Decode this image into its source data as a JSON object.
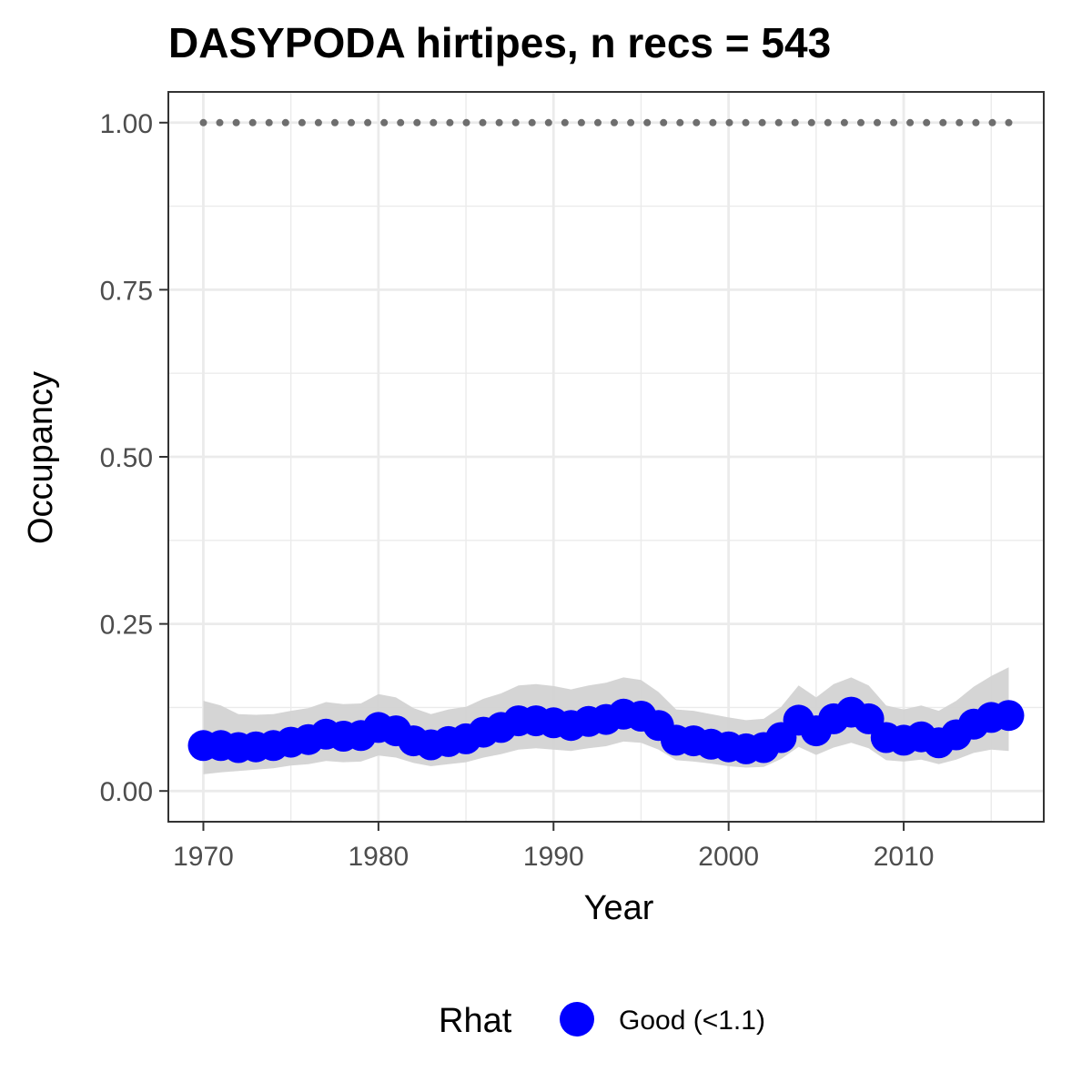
{
  "chart_data": {
    "type": "line",
    "title": "DASYPODA hirtipes, n recs = 543",
    "xlabel": "Year",
    "ylabel": "Occupancy",
    "xlim": [
      1968,
      2018
    ],
    "ylim": [
      -0.046,
      1.046
    ],
    "x_ticks": [
      1970,
      1980,
      1990,
      2000,
      2010
    ],
    "x_tick_labels": [
      "1970",
      "1980",
      "1990",
      "2000",
      "2010"
    ],
    "y_ticks": [
      0,
      0.25,
      0.5,
      0.75,
      1.0
    ],
    "y_tick_labels": [
      "0.00",
      "0.25",
      "0.50",
      "0.75",
      "1.00"
    ],
    "grid": true,
    "legend": {
      "title": "Rhat",
      "placement": "bottom",
      "entries": [
        {
          "label": "Good (<1.1)",
          "color": "#0000ff"
        }
      ]
    },
    "colors": {
      "points": "#0000ff",
      "ribbon": "#d3d3d3",
      "reference": "#6e6e6e",
      "grid": "#ebebeb",
      "panel_border": "#333333"
    },
    "x": [
      1970,
      1971,
      1972,
      1973,
      1974,
      1975,
      1976,
      1977,
      1978,
      1979,
      1980,
      1981,
      1982,
      1983,
      1984,
      1985,
      1986,
      1987,
      1988,
      1989,
      1990,
      1991,
      1992,
      1993,
      1994,
      1995,
      1996,
      1997,
      1998,
      1999,
      2000,
      2001,
      2002,
      2003,
      2004,
      2005,
      2006,
      2007,
      2008,
      2009,
      2010,
      2011,
      2012,
      2013,
      2014,
      2015,
      2016
    ],
    "series": [
      {
        "values": [
          0.068,
          0.068,
          0.065,
          0.066,
          0.068,
          0.073,
          0.077,
          0.085,
          0.082,
          0.083,
          0.095,
          0.09,
          0.075,
          0.069,
          0.074,
          0.078,
          0.088,
          0.095,
          0.105,
          0.105,
          0.102,
          0.098,
          0.104,
          0.107,
          0.115,
          0.112,
          0.098,
          0.076,
          0.075,
          0.07,
          0.066,
          0.063,
          0.065,
          0.08,
          0.106,
          0.09,
          0.108,
          0.118,
          0.108,
          0.08,
          0.076,
          0.081,
          0.072,
          0.084,
          0.1,
          0.11,
          0.113
        ],
        "lower": [
          0.025,
          0.028,
          0.03,
          0.032,
          0.034,
          0.038,
          0.04,
          0.045,
          0.043,
          0.044,
          0.053,
          0.05,
          0.042,
          0.037,
          0.04,
          0.043,
          0.05,
          0.055,
          0.062,
          0.064,
          0.062,
          0.06,
          0.064,
          0.067,
          0.074,
          0.072,
          0.062,
          0.046,
          0.044,
          0.041,
          0.037,
          0.035,
          0.036,
          0.048,
          0.066,
          0.054,
          0.065,
          0.072,
          0.064,
          0.046,
          0.044,
          0.047,
          0.04,
          0.047,
          0.057,
          0.062,
          0.06
        ]
      }
    ],
    "upper": [
      0.135,
      0.128,
      0.115,
      0.114,
      0.115,
      0.12,
      0.124,
      0.133,
      0.13,
      0.131,
      0.145,
      0.14,
      0.124,
      0.115,
      0.122,
      0.126,
      0.138,
      0.146,
      0.158,
      0.16,
      0.157,
      0.152,
      0.158,
      0.162,
      0.17,
      0.166,
      0.148,
      0.122,
      0.12,
      0.115,
      0.11,
      0.106,
      0.108,
      0.126,
      0.158,
      0.14,
      0.16,
      0.17,
      0.158,
      0.128,
      0.122,
      0.128,
      0.12,
      0.135,
      0.156,
      0.172,
      0.185
    ],
    "reference_line_y": 1.0
  }
}
